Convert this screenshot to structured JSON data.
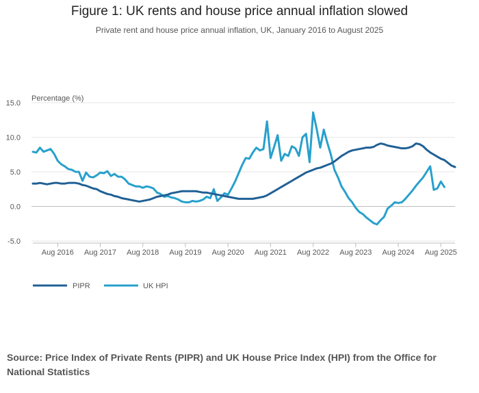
{
  "title": "Figure 1: UK rents and house price annual inflation slowed",
  "subtitle": "Private rent and house price annual inflation, UK, January 2016 to August 2025",
  "source": "Source: Price Index of Private Rents (PIPR) and UK House Price Index (HPI) from the Office for National Statistics",
  "chart_data": {
    "type": "line",
    "ylabel": "Percentage (%)",
    "ylim": [
      -5,
      15
    ],
    "yticks": [
      "15.0",
      "10.0",
      "5.0",
      "0.0",
      "-5.0"
    ],
    "ytick_values": [
      15,
      10,
      5,
      0,
      -5
    ],
    "xticks": [
      "Aug 2016",
      "Aug 2017",
      "Aug 2018",
      "Aug 2019",
      "Aug 2020",
      "Aug 2021",
      "Aug 2022",
      "Aug 2023",
      "Aug 2024",
      "Aug 2025"
    ],
    "x_start": "Jan 2016",
    "x_end": "Aug 2025",
    "grid": true,
    "legend_position": "bottom-left",
    "series": [
      {
        "name": "PIPR",
        "color": "#206095",
        "values": [
          3.3,
          3.3,
          3.4,
          3.3,
          3.2,
          3.3,
          3.4,
          3.4,
          3.3,
          3.3,
          3.4,
          3.4,
          3.4,
          3.3,
          3.1,
          3.0,
          2.8,
          2.6,
          2.5,
          2.2,
          2.0,
          1.8,
          1.7,
          1.5,
          1.4,
          1.2,
          1.1,
          1.0,
          0.9,
          0.8,
          0.7,
          0.8,
          0.9,
          1.0,
          1.2,
          1.4,
          1.5,
          1.6,
          1.7,
          1.9,
          2.0,
          2.1,
          2.2,
          2.2,
          2.2,
          2.2,
          2.2,
          2.1,
          2.0,
          2.0,
          1.9,
          1.8,
          1.7,
          1.6,
          1.5,
          1.4,
          1.3,
          1.2,
          1.1,
          1.1,
          1.1,
          1.1,
          1.1,
          1.2,
          1.3,
          1.4,
          1.6,
          1.9,
          2.2,
          2.5,
          2.8,
          3.1,
          3.4,
          3.7,
          4.0,
          4.3,
          4.6,
          4.9,
          5.1,
          5.3,
          5.5,
          5.6,
          5.8,
          6.0,
          6.2,
          6.5,
          6.9,
          7.3,
          7.6,
          7.9,
          8.1,
          8.2,
          8.3,
          8.4,
          8.5,
          8.5,
          8.6,
          8.9,
          9.1,
          9.0,
          8.8,
          8.7,
          8.6,
          8.5,
          8.4,
          8.4,
          8.5,
          8.7,
          9.1,
          9.0,
          8.7,
          8.2,
          7.8,
          7.5,
          7.2,
          6.9,
          6.7,
          6.3,
          5.9,
          5.7
        ]
      },
      {
        "name": "UK HPI",
        "color": "#27a0cc",
        "values": [
          7.9,
          7.8,
          8.5,
          7.9,
          8.1,
          8.3,
          7.6,
          6.6,
          6.1,
          5.8,
          5.4,
          5.3,
          5.0,
          5.0,
          3.7,
          4.9,
          4.3,
          4.2,
          4.5,
          4.9,
          4.8,
          5.1,
          4.4,
          4.7,
          4.3,
          4.3,
          3.9,
          3.3,
          3.1,
          2.9,
          2.9,
          2.7,
          2.9,
          2.8,
          2.6,
          2.0,
          1.8,
          1.4,
          1.5,
          1.3,
          1.2,
          1.0,
          0.7,
          0.6,
          0.6,
          0.8,
          0.7,
          0.8,
          1.0,
          1.4,
          1.2,
          2.5,
          0.8,
          1.3,
          1.9,
          1.7,
          2.6,
          3.6,
          4.8,
          6.0,
          7.0,
          6.9,
          7.8,
          8.5,
          8.1,
          8.3,
          12.3,
          7.0,
          8.6,
          10.3,
          6.6,
          7.6,
          7.3,
          8.7,
          8.4,
          7.3,
          10.0,
          10.5,
          6.4,
          13.6,
          11.2,
          8.5,
          11.1,
          9.2,
          7.5,
          5.3,
          4.2,
          2.9,
          2.1,
          1.2,
          0.6,
          -0.2,
          -0.8,
          -1.1,
          -1.6,
          -2.0,
          -2.4,
          -2.6,
          -2.0,
          -1.5,
          -0.3,
          0.1,
          0.6,
          0.5,
          0.6,
          1.1,
          1.7,
          2.3,
          3.0,
          3.6,
          4.2,
          5.0,
          5.8,
          2.4,
          2.6,
          3.6,
          2.8
        ]
      }
    ]
  }
}
